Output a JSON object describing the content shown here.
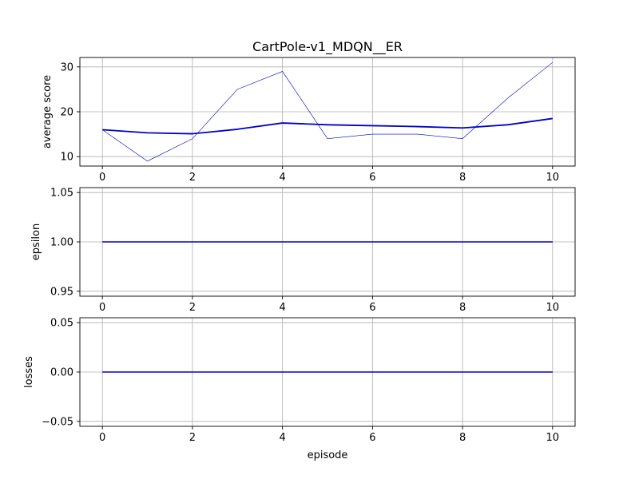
{
  "chart_data": [
    {
      "type": "line",
      "title": "CartPole-v1_MDQN__ER",
      "xlabel": "",
      "ylabel": "average score",
      "x": [
        0,
        1,
        2,
        3,
        4,
        5,
        6,
        7,
        8,
        9,
        10
      ],
      "xticks": [
        0,
        2,
        4,
        6,
        8,
        10
      ],
      "yticks": [
        10,
        20,
        30
      ],
      "xlim": [
        -0.5,
        10.5
      ],
      "ylim": [
        7.9,
        32.1
      ],
      "grid": true,
      "series": [
        {
          "values": [
            16,
            9,
            14,
            25,
            29,
            14,
            15,
            15,
            14,
            23,
            31
          ],
          "color": "#0000cc",
          "style": "thin"
        },
        {
          "values": [
            16,
            15.3,
            15.1,
            16.1,
            17.5,
            17.1,
            16.9,
            16.7,
            16.4,
            17.1,
            18.5
          ],
          "color": "#0000cc",
          "style": "thick"
        }
      ]
    },
    {
      "type": "line",
      "title": "",
      "xlabel": "",
      "ylabel": "epsilon",
      "x": [
        0,
        1,
        2,
        3,
        4,
        5,
        6,
        7,
        8,
        9,
        10
      ],
      "xticks": [
        0,
        2,
        4,
        6,
        8,
        10
      ],
      "yticks": [
        0.95,
        1.0,
        1.05
      ],
      "ytick_labels": [
        "0.95",
        "1.00",
        "1.05"
      ],
      "xlim": [
        -0.5,
        10.5
      ],
      "ylim": [
        0.945,
        1.055
      ],
      "grid": true,
      "series": [
        {
          "values": [
            1,
            1,
            1,
            1,
            1,
            1,
            1,
            1,
            1,
            1,
            1
          ],
          "color": "#0000cc",
          "style": "medium"
        }
      ]
    },
    {
      "type": "line",
      "title": "",
      "xlabel": "episode",
      "ylabel": "losses",
      "x": [
        0,
        1,
        2,
        3,
        4,
        5,
        6,
        7,
        8,
        9,
        10
      ],
      "xticks": [
        0,
        2,
        4,
        6,
        8,
        10
      ],
      "yticks": [
        -0.05,
        0.0,
        0.05
      ],
      "ytick_labels": [
        "−0.05",
        "0.00",
        "0.05"
      ],
      "xlim": [
        -0.5,
        10.5
      ],
      "ylim": [
        -0.055,
        0.055
      ],
      "grid": true,
      "series": [
        {
          "values": [
            0,
            0,
            0,
            0,
            0,
            0,
            0,
            0,
            0,
            0,
            0
          ],
          "color": "#0000cc",
          "style": "medium"
        }
      ]
    }
  ]
}
